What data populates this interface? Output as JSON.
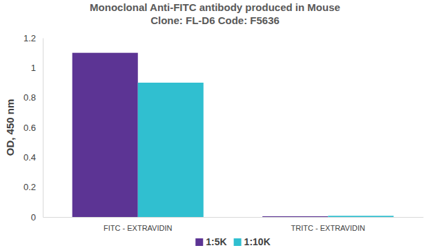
{
  "chart_data": {
    "type": "bar",
    "title": "Monoclonal Anti-FITC antibody produced in Mouse",
    "subtitle": "Clone: FL-D6  Code: F5636",
    "y_label": "OD, 450 nm",
    "categories": [
      "FITC - EXTRAVIDIN",
      "TRITC - EXTRAVIDIN"
    ],
    "series": [
      {
        "name": "1:5K",
        "color": "#5c3494",
        "values": [
          1.1,
          0.005
        ]
      },
      {
        "name": "1:10K",
        "color": "#30bfd0",
        "values": [
          0.9,
          0.008
        ]
      }
    ],
    "ylim": [
      0,
      1.2
    ],
    "yticks": [
      0,
      0.2,
      0.4,
      0.6,
      0.8,
      1,
      1.2
    ],
    "grid": false,
    "legend": "bottom"
  }
}
